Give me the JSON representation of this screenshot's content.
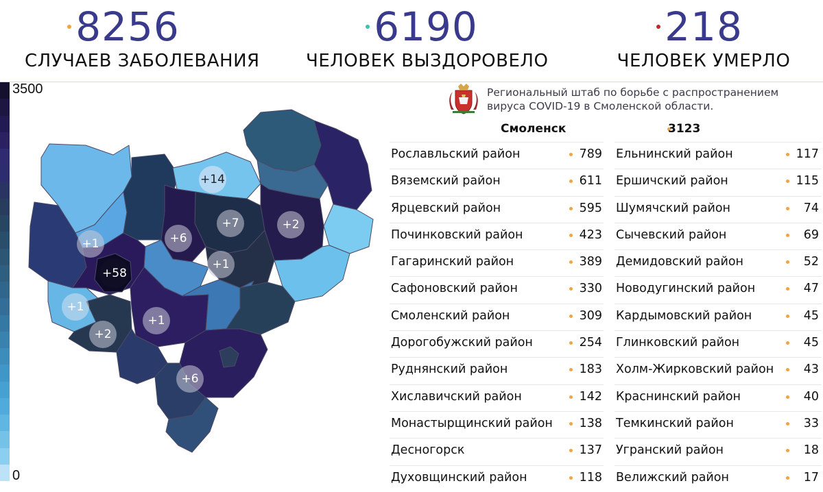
{
  "stats": {
    "cases": {
      "value": "8256",
      "label": "СЛУЧАЕВ ЗАБОЛЕВАНИЯ",
      "dot_color": "#f4a340"
    },
    "recovered": {
      "value": "6190",
      "label": "ЧЕЛОВЕК ВЫЗДОРОВЕЛО",
      "dot_color": "#3cc3a8"
    },
    "deaths": {
      "value": "218",
      "label": "ЧЕЛОВЕК УМЕРЛО",
      "dot_color": "#c0282e"
    }
  },
  "legend": {
    "max_label": "3500",
    "min_label": "0",
    "colors": [
      "#14102e",
      "#1c1640",
      "#221a52",
      "#2a2062",
      "#302a72",
      "#2c2c6e",
      "#2a3462",
      "#283c5c",
      "#284660",
      "#2a4e6a",
      "#2c5674",
      "#2e5e80",
      "#30668c",
      "#326e98",
      "#3478a4",
      "#3882b0",
      "#3c8cbc",
      "#4096c8",
      "#46a0d2",
      "#50aadb",
      "#60b6e2",
      "#74c2e8",
      "#8ccef0",
      "#bde2f6"
    ]
  },
  "header": {
    "line1": "Региональный штаб по борьбе с распространением",
    "line2": "вируса  COVID-19 в Смоленской области.",
    "emblem": "smolensk-coat-of-arms-icon"
  },
  "city": {
    "name": "Смоленск",
    "value": "3123",
    "dot_color": "#f4a340"
  },
  "bullet_color": "#f4a340",
  "districts_left": [
    {
      "name": "Рославльский район",
      "value": "789"
    },
    {
      "name": "Вяземский район",
      "value": "611"
    },
    {
      "name": "Ярцевский район",
      "value": "595"
    },
    {
      "name": "Починковский район",
      "value": "423"
    },
    {
      "name": "Гагаринский район",
      "value": "389"
    },
    {
      "name": "Сафоновский район",
      "value": "330"
    },
    {
      "name": "Смоленский район",
      "value": "309"
    },
    {
      "name": "Дорогобужский район",
      "value": "254"
    },
    {
      "name": "Руднянский район",
      "value": "183"
    },
    {
      "name": "Хиславичский район",
      "value": "142"
    },
    {
      "name": "Монастырщинский район",
      "value": "138"
    },
    {
      "name": "Десногорск",
      "value": "137"
    },
    {
      "name": "Духовщинский район",
      "value": "118"
    }
  ],
  "districts_right": [
    {
      "name": "Ельнинский район",
      "value": "117"
    },
    {
      "name": "Ершичский район",
      "value": "115"
    },
    {
      "name": "Шумячский район",
      "value": "74"
    },
    {
      "name": "Сычевский район",
      "value": "69"
    },
    {
      "name": "Демидовский район",
      "value": "52"
    },
    {
      "name": "Новодугинский район",
      "value": "47"
    },
    {
      "name": "Кардымовский район",
      "value": "45"
    },
    {
      "name": "Глинковский  район",
      "value": "45"
    },
    {
      "name": "Холм-Жирковский район",
      "value": "43"
    },
    {
      "name": "Краснинский район",
      "value": "40"
    },
    {
      "name": "Темкинский район",
      "value": "33"
    },
    {
      "name": "Угранский район",
      "value": "18"
    },
    {
      "name": "Велижский район",
      "value": "17"
    }
  ],
  "map": {
    "increments": [
      "+14",
      "+7",
      "+2",
      "+6",
      "+1",
      "+1",
      "+58",
      "+1",
      "+1",
      "+2",
      "+6"
    ]
  }
}
